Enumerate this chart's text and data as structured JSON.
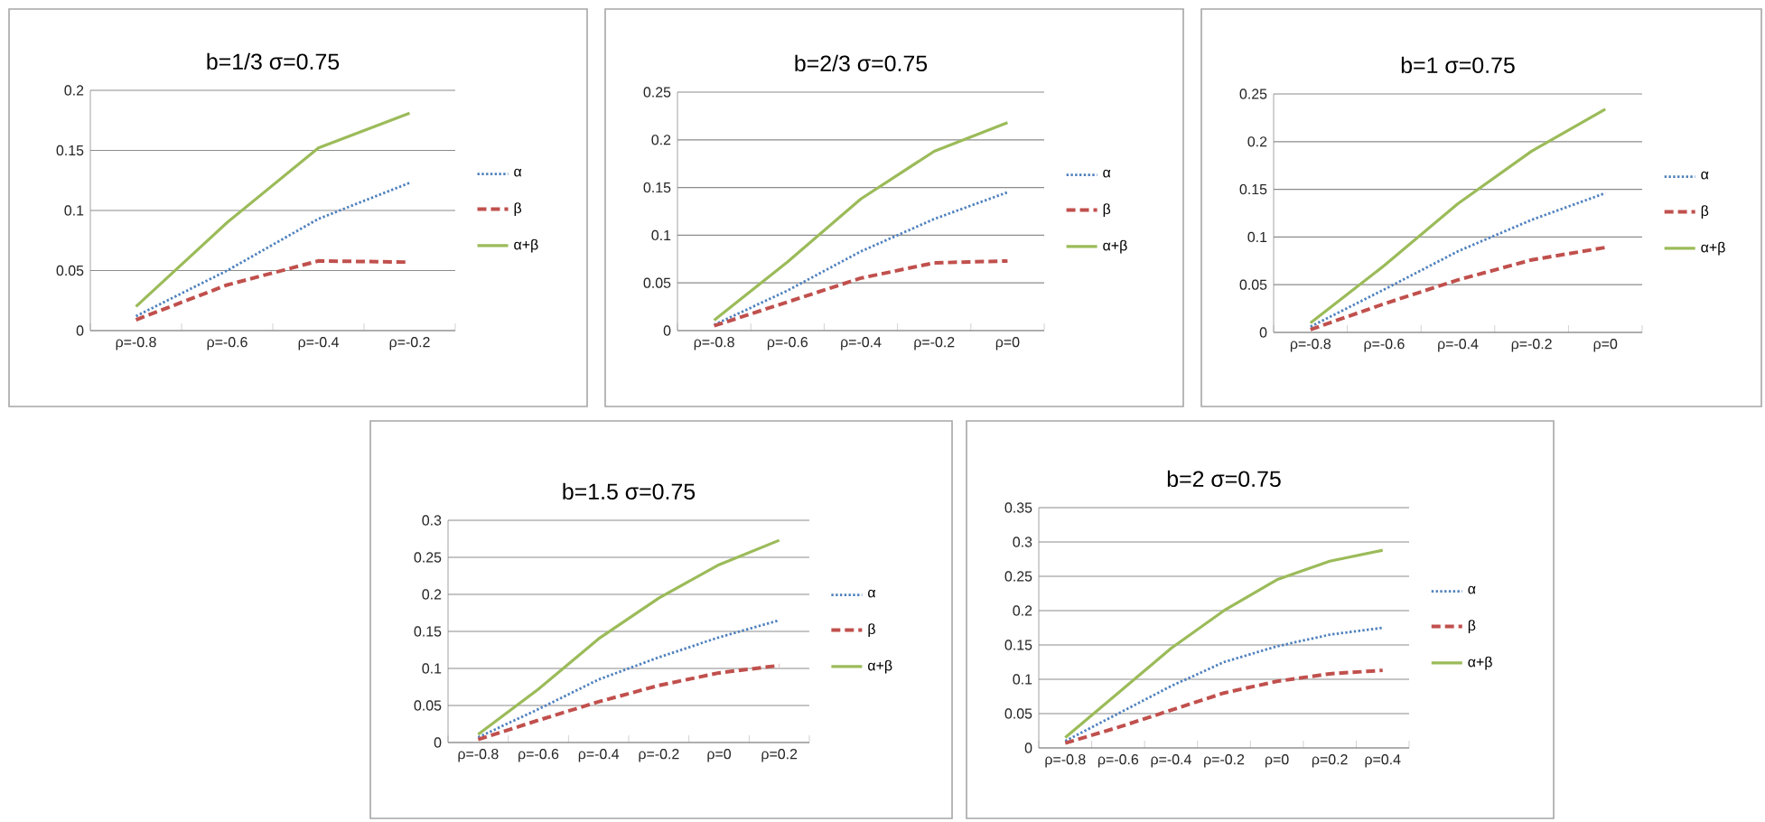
{
  "chart_data": [
    {
      "type": "line",
      "title": "b=1/3   σ=0.75",
      "categories": [
        "ρ=-0.8",
        "ρ=-0.6",
        "ρ=-0.4",
        "ρ=-0.2"
      ],
      "ylim": [
        0,
        0.2
      ],
      "yticks": [
        0,
        0.05,
        0.1,
        0.15,
        0.2
      ],
      "grid": "y",
      "legend": "right",
      "marker": "none",
      "series": [
        {
          "name": "α",
          "color": "#4f81bd",
          "line_style": "dotted",
          "values": [
            0.012,
            0.05,
            0.093,
            0.123
          ]
        },
        {
          "name": "β",
          "color": "#c0504d",
          "line_style": "dashed",
          "values": [
            0.009,
            0.038,
            0.058,
            0.057
          ]
        },
        {
          "name": "α+β",
          "color": "#9bbb59",
          "line_style": "solid",
          "values": [
            0.02,
            0.09,
            0.152,
            0.181
          ]
        }
      ]
    },
    {
      "type": "line",
      "title": "b=2/3   σ=0.75",
      "categories": [
        "ρ=-0.8",
        "ρ=-0.6",
        "ρ=-0.4",
        "ρ=-0.2",
        "ρ=0"
      ],
      "ylim": [
        0,
        0.25
      ],
      "yticks": [
        0,
        0.05,
        0.1,
        0.15,
        0.2,
        0.25
      ],
      "grid": "y",
      "legend": "right",
      "marker": "none",
      "series": [
        {
          "name": "α",
          "color": "#4f81bd",
          "line_style": "dotted",
          "values": [
            0.006,
            0.042,
            0.083,
            0.117,
            0.145
          ]
        },
        {
          "name": "β",
          "color": "#c0504d",
          "line_style": "dashed",
          "values": [
            0.005,
            0.03,
            0.055,
            0.071,
            0.073
          ]
        },
        {
          "name": "α+β",
          "color": "#9bbb59",
          "line_style": "solid",
          "values": [
            0.011,
            0.072,
            0.138,
            0.188,
            0.218
          ]
        }
      ]
    },
    {
      "type": "line",
      "title": "b=1   σ=0.75",
      "categories": [
        "ρ=-0.8",
        "ρ=-0.6",
        "ρ=-0.4",
        "ρ=-0.2",
        "ρ=0"
      ],
      "ylim": [
        0,
        0.25
      ],
      "yticks": [
        0,
        0.05,
        0.1,
        0.15,
        0.2,
        0.25
      ],
      "grid": "y",
      "legend": "right",
      "marker": "none",
      "series": [
        {
          "name": "α",
          "color": "#4f81bd",
          "line_style": "dotted",
          "values": [
            0.006,
            0.045,
            0.085,
            0.118,
            0.146
          ]
        },
        {
          "name": "β",
          "color": "#c0504d",
          "line_style": "dashed",
          "values": [
            0.003,
            0.03,
            0.055,
            0.076,
            0.089
          ]
        },
        {
          "name": "α+β",
          "color": "#9bbb59",
          "line_style": "solid",
          "values": [
            0.01,
            0.07,
            0.135,
            0.19,
            0.234
          ]
        }
      ]
    },
    {
      "type": "line",
      "title": "b=1.5    σ=0.75",
      "categories": [
        "ρ=-0.8",
        "ρ=-0.6",
        "ρ=-0.4",
        "ρ=-0.2",
        "ρ=0",
        "ρ=0.2"
      ],
      "ylim": [
        0,
        0.3
      ],
      "yticks": [
        0,
        0.05,
        0.1,
        0.15,
        0.2,
        0.25,
        0.3
      ],
      "grid": "y",
      "legend": "right",
      "marker": "none",
      "series": [
        {
          "name": "α",
          "color": "#4f81bd",
          "line_style": "dotted",
          "values": [
            0.007,
            0.045,
            0.085,
            0.115,
            0.142,
            0.165
          ]
        },
        {
          "name": "β",
          "color": "#c0504d",
          "line_style": "dashed",
          "values": [
            0.004,
            0.03,
            0.055,
            0.077,
            0.094,
            0.104
          ]
        },
        {
          "name": "α+β",
          "color": "#9bbb59",
          "line_style": "solid",
          "values": [
            0.011,
            0.072,
            0.14,
            0.195,
            0.24,
            0.273
          ]
        }
      ]
    },
    {
      "type": "line",
      "title": "b=2     σ=0.75",
      "categories": [
        "ρ=-0.8",
        "ρ=-0.6",
        "ρ=-0.4",
        "ρ=-0.2",
        "ρ=0",
        "ρ=0.2",
        "ρ=0.4"
      ],
      "ylim": [
        0,
        0.35
      ],
      "yticks": [
        0,
        0.05,
        0.1,
        0.15,
        0.2,
        0.25,
        0.3,
        0.35
      ],
      "grid": "y",
      "legend": "right",
      "marker": "none",
      "series": [
        {
          "name": "α",
          "color": "#4f81bd",
          "line_style": "dotted",
          "values": [
            0.01,
            0.05,
            0.09,
            0.125,
            0.148,
            0.165,
            0.175
          ]
        },
        {
          "name": "β",
          "color": "#c0504d",
          "line_style": "dashed",
          "values": [
            0.007,
            0.03,
            0.055,
            0.08,
            0.097,
            0.108,
            0.113
          ]
        },
        {
          "name": "α+β",
          "color": "#9bbb59",
          "line_style": "solid",
          "values": [
            0.015,
            0.08,
            0.145,
            0.2,
            0.245,
            0.272,
            0.288
          ]
        }
      ]
    }
  ]
}
